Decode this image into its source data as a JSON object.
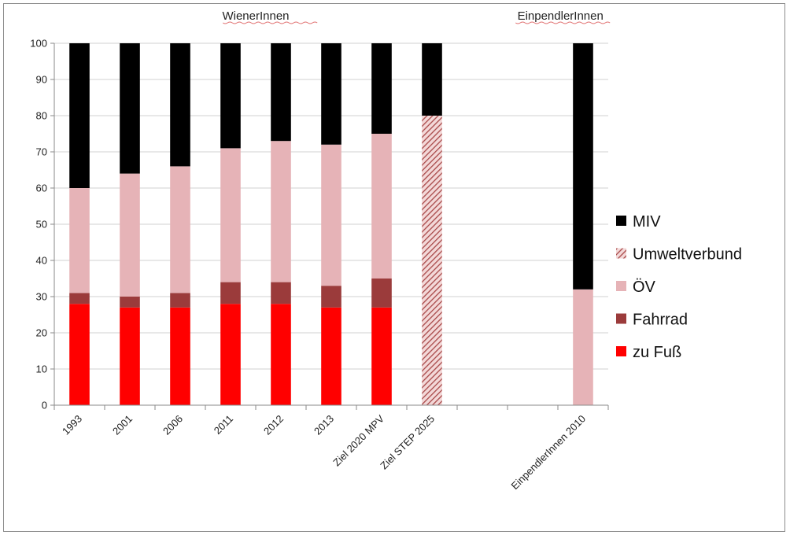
{
  "chart_data": {
    "type": "bar",
    "stacked": true,
    "group_labels": [
      "WienerInnen",
      "EinpendlerInnen"
    ],
    "categories": [
      "1993",
      "2001",
      "2006",
      "2011",
      "2012",
      "2013",
      "Ziel 2020 MPV",
      "Ziel STEP 2025",
      "",
      "",
      "EinpendlerInnen 2010"
    ],
    "yticks": [
      "0",
      "10",
      "20",
      "30",
      "40",
      "50",
      "60",
      "70",
      "80",
      "90",
      "100"
    ],
    "ylim": [
      0,
      100
    ],
    "grid": true,
    "legend_position": "right",
    "legend_order": [
      "MIV",
      "Umweltverbund",
      "ÖV",
      "Fahrrad",
      "zu Fuß"
    ],
    "series": [
      {
        "name": "zu Fuß",
        "color": "#ff0000",
        "pattern": "solid",
        "values": [
          28,
          27,
          27,
          28,
          28,
          27,
          27,
          0,
          0,
          0,
          0
        ]
      },
      {
        "name": "Fahrrad",
        "color": "#9b3b3b",
        "pattern": "solid",
        "values": [
          3,
          3,
          4,
          6,
          6,
          6,
          8,
          0,
          0,
          0,
          0
        ]
      },
      {
        "name": "ÖV",
        "color": "#e6b3b7",
        "pattern": "solid",
        "values": [
          29,
          34,
          35,
          37,
          39,
          39,
          40,
          0,
          0,
          0,
          32
        ]
      },
      {
        "name": "Umweltverbund",
        "color": "#b85c5c",
        "pattern": "hatch",
        "values": [
          0,
          0,
          0,
          0,
          0,
          0,
          0,
          80,
          0,
          0,
          0
        ]
      },
      {
        "name": "MIV",
        "color": "#000000",
        "pattern": "solid",
        "values": [
          40,
          36,
          34,
          29,
          27,
          28,
          25,
          20,
          0,
          0,
          68
        ]
      }
    ]
  }
}
